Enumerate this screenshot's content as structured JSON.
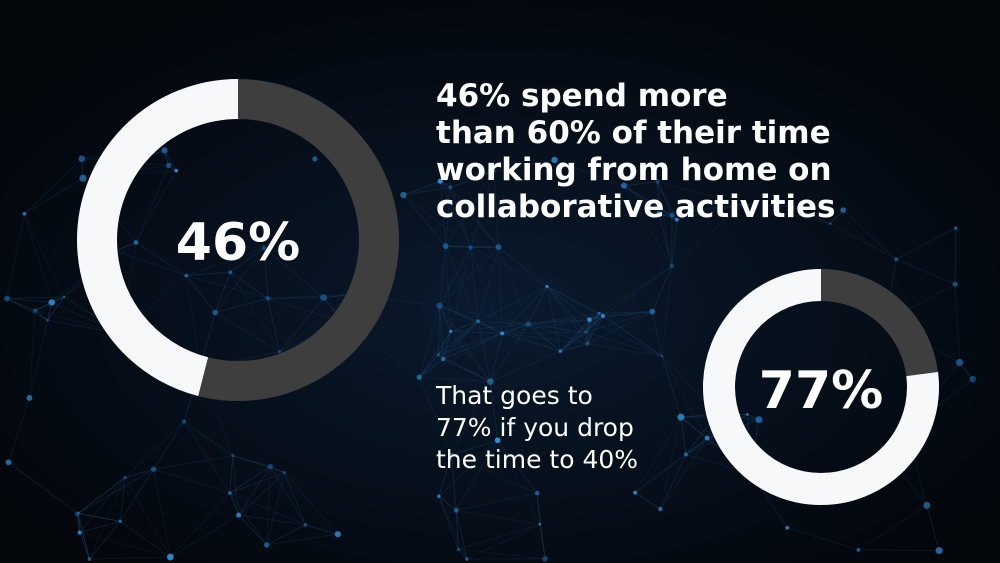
{
  "headline": "46% spend more\nthan 60% of their time\nworking from home on\ncollaborative activities",
  "subtext": "That goes to\n77% if you drop\nthe time to 40%",
  "chart_data": [
    {
      "type": "pie",
      "variant": "donut",
      "value_percent": 46,
      "label": "46%",
      "colors": {
        "filled": "#f7f8fa",
        "remainder": "#3e3e3e"
      }
    },
    {
      "type": "pie",
      "variant": "donut",
      "value_percent": 77,
      "label": "77%",
      "colors": {
        "filled": "#f7f8fa",
        "remainder": "#3e3e3e"
      }
    }
  ]
}
